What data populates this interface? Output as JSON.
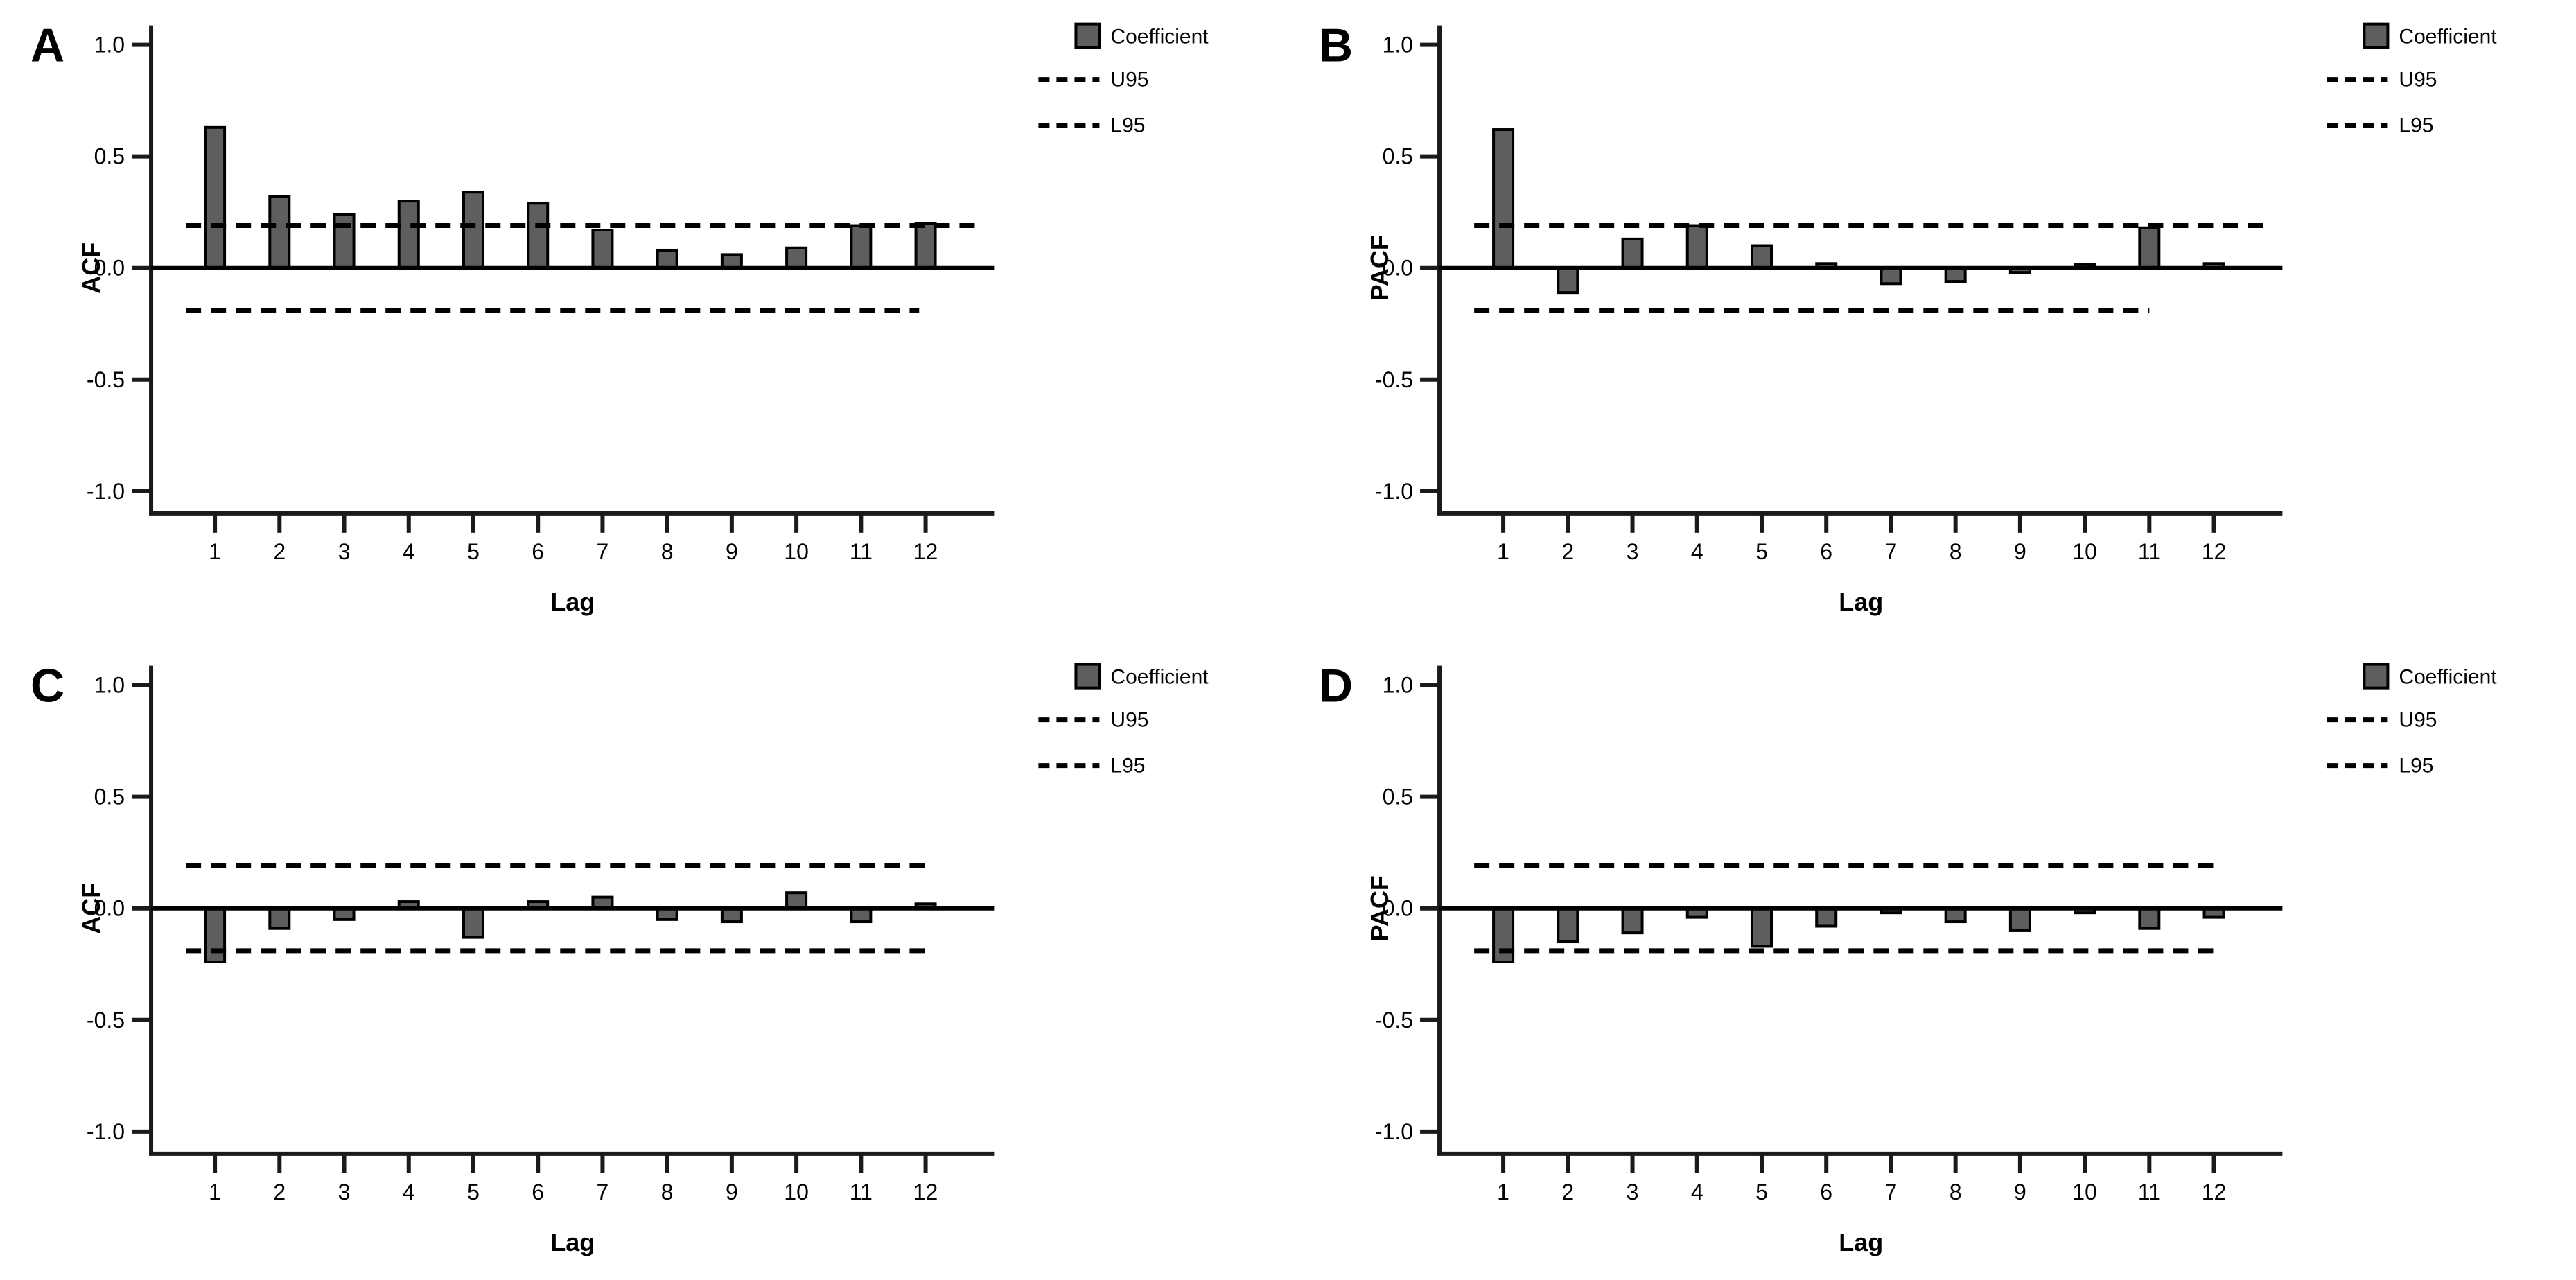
{
  "figure_title": "",
  "colors": {
    "background": "#ffffff",
    "bar_fill": "#5e5e5e",
    "bar_edge": "#000000",
    "axis_line": "#1a1a1a",
    "reference_line": "#000000",
    "text": "#000000"
  },
  "legend": {
    "coefficient_label": "Coefficient",
    "u95_label": "U95",
    "l95_label": "L95",
    "position": "top-right"
  },
  "chart_data": [
    {
      "type": "bar",
      "panel_label": "A",
      "ylabel": "ACF",
      "xlabel": "Lag",
      "categories": [
        1,
        2,
        3,
        4,
        5,
        6,
        7,
        8,
        9,
        10,
        11,
        12
      ],
      "values": [
        0.63,
        0.32,
        0.24,
        0.3,
        0.34,
        0.29,
        0.17,
        0.08,
        0.06,
        0.09,
        0.19,
        0.2
      ],
      "u95": 0.19,
      "l95": -0.19,
      "ylim": [
        -1.0,
        1.0
      ],
      "y_ticks": [
        "1.0",
        "0.5",
        "0.0",
        "-0.5",
        "-1.0"
      ],
      "grid": false,
      "legend_entries": [
        "Coefficient",
        "U95",
        "L95"
      ],
      "u95_end_lag": 12.8,
      "l95_end_lag": 11.9
    },
    {
      "type": "bar",
      "panel_label": "B",
      "ylabel": "PACF",
      "xlabel": "Lag",
      "categories": [
        1,
        2,
        3,
        4,
        5,
        6,
        7,
        8,
        9,
        10,
        11,
        12
      ],
      "values": [
        0.62,
        -0.11,
        0.13,
        0.19,
        0.1,
        0.02,
        -0.07,
        -0.06,
        -0.02,
        0.01,
        0.18,
        0.02
      ],
      "u95": 0.19,
      "l95": -0.19,
      "ylim": [
        -1.0,
        1.0
      ],
      "y_ticks": [
        "1.0",
        "0.5",
        "0.0",
        "-0.5",
        "-1.0"
      ],
      "grid": false,
      "legend_entries": [
        "Coefficient",
        "U95",
        "L95"
      ],
      "u95_end_lag": 12.8,
      "l95_end_lag": 11.0
    },
    {
      "type": "bar",
      "panel_label": "C",
      "ylabel": "ACF",
      "xlabel": "Lag",
      "categories": [
        1,
        2,
        3,
        4,
        5,
        6,
        7,
        8,
        9,
        10,
        11,
        12
      ],
      "values": [
        -0.24,
        -0.09,
        -0.05,
        0.03,
        -0.13,
        0.03,
        0.05,
        -0.05,
        -0.06,
        0.07,
        -0.06,
        0.02
      ],
      "u95": 0.19,
      "l95": -0.19,
      "ylim": [
        -1.0,
        1.0
      ],
      "y_ticks": [
        "1.0",
        "0.5",
        "0.0",
        "-0.5",
        "-1.0"
      ],
      "grid": false,
      "legend_entries": [
        "Coefficient",
        "U95",
        "L95"
      ],
      "u95_end_lag": 12.0,
      "l95_end_lag": 12.0
    },
    {
      "type": "bar",
      "panel_label": "D",
      "ylabel": "PACF",
      "xlabel": "Lag",
      "categories": [
        1,
        2,
        3,
        4,
        5,
        6,
        7,
        8,
        9,
        10,
        11,
        12
      ],
      "values": [
        -0.24,
        -0.15,
        -0.11,
        -0.04,
        -0.17,
        -0.08,
        -0.02,
        -0.06,
        -0.1,
        -0.02,
        -0.09,
        -0.04
      ],
      "u95": 0.19,
      "l95": -0.19,
      "ylim": [
        -1.0,
        1.0
      ],
      "y_ticks": [
        "1.0",
        "0.5",
        "0.0",
        "-0.5",
        "-1.0"
      ],
      "grid": false,
      "legend_entries": [
        "Coefficient",
        "U95",
        "L95"
      ],
      "u95_end_lag": 12.0,
      "l95_end_lag": 12.0
    }
  ]
}
